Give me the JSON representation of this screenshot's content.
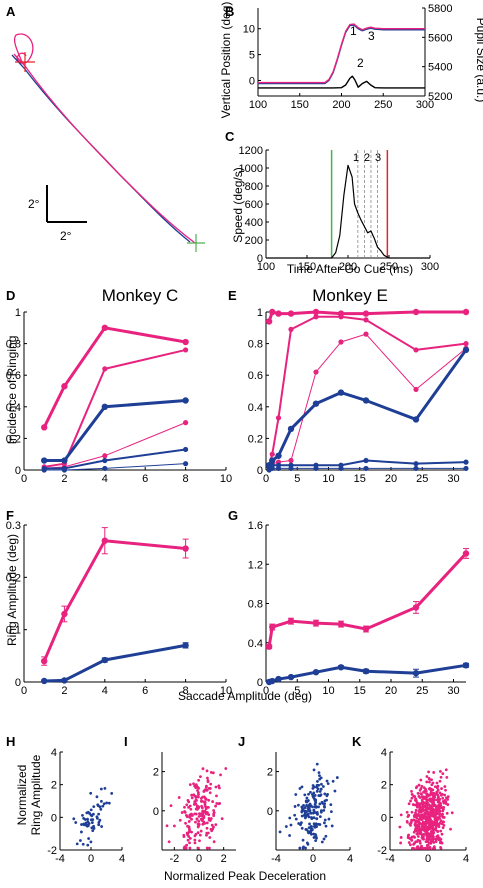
{
  "colors": {
    "magenta": "#e8237f",
    "blue": "#1f3f96",
    "green": "#4caf50",
    "red": "#e8242a",
    "black": "#000000"
  },
  "panels": {
    "A": {
      "label": "A",
      "scale_v": "2°",
      "scale_h": "2°"
    },
    "B": {
      "label": "B",
      "ylabel_left": "Vertical Position (deg)",
      "ylabel_right": "Pupil Size (a.u.)",
      "xticks": [
        "100",
        "150",
        "200",
        "250",
        "300"
      ],
      "yticks_left": [
        "0",
        "5",
        "10"
      ],
      "yticks_right": [
        "5200",
        "5400",
        "5600",
        "5800"
      ],
      "annotations": [
        "1",
        "2",
        "3"
      ]
    },
    "C": {
      "label": "C",
      "ylabel": "Speed (deg/s)",
      "xlabel": "Time After Go Cue (ms)",
      "xticks": [
        "100",
        "150",
        "200",
        "250",
        "300"
      ],
      "yticks": [
        "0",
        "200",
        "400",
        "600",
        "800",
        "1000",
        "1200"
      ],
      "annotations": [
        "1",
        "2",
        "3"
      ]
    },
    "D": {
      "label": "D",
      "title": "Monkey C",
      "ylabel": "Incidence of Ringing",
      "xticks": [
        "0",
        "2",
        "4",
        "6",
        "8",
        "10"
      ],
      "yticks": [
        "0",
        "0.2",
        "0.4",
        "0.6",
        "0.8",
        "1"
      ]
    },
    "E": {
      "label": "E",
      "title": "Monkey E",
      "xticks": [
        "0",
        "5",
        "10",
        "15",
        "20",
        "25",
        "30"
      ],
      "yticks": [
        "0",
        "0.2",
        "0.4",
        "0.6",
        "0.8",
        "1"
      ]
    },
    "F": {
      "label": "F",
      "ylabel": "Ring Amplitude (deg)",
      "xticks": [
        "0",
        "2",
        "4",
        "6",
        "8",
        "10"
      ],
      "yticks": [
        "0",
        "0.1",
        "0.2",
        "0.3"
      ]
    },
    "G": {
      "label": "G",
      "xticks": [
        "0",
        "5",
        "10",
        "15",
        "20",
        "25",
        "30"
      ],
      "yticks": [
        "0",
        "0.4",
        "0.8",
        "1.2",
        "1.6"
      ]
    },
    "shared_xlabel_FG": "Saccade Amplitude (deg)",
    "H": {
      "label": "H",
      "ylabel": "Normalized Ring Amplitude",
      "xticks": [
        "-4",
        "0",
        "4"
      ],
      "yticks": [
        "-2",
        "0",
        "2",
        "4"
      ]
    },
    "I": {
      "label": "I",
      "xticks": [
        "-2",
        "0",
        "2"
      ],
      "yticks": [
        "0",
        "2"
      ]
    },
    "J": {
      "label": "J",
      "xticks": [
        "-4",
        "0",
        "4"
      ],
      "yticks": [
        "0",
        "2"
      ]
    },
    "K": {
      "label": "K",
      "xticks": [
        "-4",
        "0",
        "4"
      ],
      "yticks": [
        "-2",
        "0",
        "2",
        "4"
      ]
    },
    "shared_xlabel_HK": "Normalized Peak Deceleration"
  },
  "chart_data": [
    {
      "panel": "B",
      "type": "line",
      "xlim": [
        100,
        300
      ],
      "ylim": [
        -3,
        14
      ],
      "y2lim": [
        5200,
        5800
      ],
      "series": [
        {
          "color": "blue",
          "x": [
            100,
            180,
            185,
            190,
            195,
            200,
            205,
            210,
            215,
            220,
            225,
            230,
            235,
            240,
            250,
            260,
            300
          ],
          "y": [
            -0.6,
            -0.6,
            0,
            1.5,
            4,
            6.8,
            9.3,
            10.6,
            10.7,
            10.0,
            9.6,
            9.9,
            10.1,
            9.9,
            9.8,
            9.8,
            9.8
          ]
        },
        {
          "color": "magenta",
          "x": [
            100,
            180,
            185,
            190,
            195,
            200,
            205,
            210,
            215,
            220,
            225,
            230,
            235,
            240,
            250,
            260,
            300
          ],
          "y": [
            -0.4,
            -0.4,
            0.2,
            1.7,
            4.2,
            7,
            9.5,
            10.8,
            10.9,
            10.2,
            9.8,
            10.1,
            10.3,
            10.1,
            10.0,
            10.0,
            10.0
          ]
        },
        {
          "color": "black",
          "axis": "right",
          "x": [
            100,
            180,
            190,
            200,
            205,
            210,
            213,
            216,
            220,
            225,
            230,
            235,
            240,
            250,
            300
          ],
          "y": [
            5255,
            5255,
            5255,
            5257,
            5275,
            5320,
            5335,
            5310,
            5260,
            5285,
            5300,
            5275,
            5257,
            5255,
            5255
          ]
        }
      ]
    },
    {
      "panel": "C",
      "type": "line",
      "xlim": [
        100,
        300
      ],
      "ylim": [
        0,
        1200
      ],
      "vlines": [
        {
          "x": 180,
          "color": "green"
        },
        {
          "x": 248,
          "color": "red"
        },
        {
          "x": 212,
          "style": "dashed"
        },
        {
          "x": 220,
          "style": "dashed"
        },
        {
          "x": 228,
          "style": "dashed"
        },
        {
          "x": 236,
          "style": "dashed"
        }
      ],
      "series": [
        {
          "color": "black",
          "x": [
            100,
            180,
            185,
            190,
            195,
            200,
            205,
            208,
            212,
            216,
            220,
            224,
            228,
            232,
            236,
            240,
            244,
            250,
            300
          ],
          "y": [
            0,
            0,
            60,
            250,
            700,
            1030,
            900,
            600,
            500,
            420,
            350,
            280,
            300,
            220,
            120,
            80,
            30,
            0,
            0
          ]
        }
      ]
    },
    {
      "panel": "D",
      "type": "line",
      "xlim": [
        0,
        10
      ],
      "ylim": [
        0,
        1
      ],
      "series": [
        {
          "color": "magenta",
          "width": 3,
          "x": [
            1,
            2,
            4,
            8
          ],
          "y": [
            0.27,
            0.53,
            0.9,
            0.81
          ]
        },
        {
          "color": "magenta",
          "width": 2,
          "x": [
            1,
            2,
            4,
            8
          ],
          "y": [
            0.02,
            0.04,
            0.64,
            0.76
          ]
        },
        {
          "color": "magenta",
          "width": 1,
          "x": [
            1,
            2,
            4,
            8
          ],
          "y": [
            0.01,
            0.02,
            0.09,
            0.3
          ]
        },
        {
          "color": "blue",
          "width": 3,
          "x": [
            1,
            2,
            4,
            8
          ],
          "y": [
            0.06,
            0.06,
            0.4,
            0.44
          ]
        },
        {
          "color": "blue",
          "width": 2,
          "x": [
            1,
            2,
            4,
            8
          ],
          "y": [
            0.01,
            0.01,
            0.06,
            0.13
          ]
        },
        {
          "color": "blue",
          "width": 1,
          "x": [
            1,
            2,
            4,
            8
          ],
          "y": [
            0,
            0,
            0.01,
            0.04
          ]
        }
      ]
    },
    {
      "panel": "E",
      "type": "line",
      "xlim": [
        0,
        32
      ],
      "ylim": [
        0,
        1
      ],
      "series": [
        {
          "color": "magenta",
          "width": 3,
          "x": [
            0.5,
            1,
            2,
            4,
            8,
            12,
            16,
            24,
            32
          ],
          "y": [
            0.94,
            1,
            0.99,
            0.99,
            1,
            0.99,
            0.99,
            1,
            1
          ]
        },
        {
          "color": "magenta",
          "width": 2,
          "x": [
            0.5,
            1,
            2,
            4,
            8,
            12,
            16,
            24,
            32
          ],
          "y": [
            0.03,
            0.1,
            0.33,
            0.89,
            0.97,
            0.97,
            0.95,
            0.76,
            0.8
          ]
        },
        {
          "color": "magenta",
          "width": 1,
          "x": [
            0.5,
            1,
            2,
            4,
            8,
            12,
            16,
            24,
            32
          ],
          "y": [
            0.02,
            0.04,
            0.05,
            0.06,
            0.62,
            0.81,
            0.86,
            0.51,
            0.77
          ]
        },
        {
          "color": "blue",
          "width": 3,
          "x": [
            0.5,
            1,
            2,
            4,
            8,
            12,
            16,
            24,
            32
          ],
          "y": [
            0.03,
            0.06,
            0.09,
            0.26,
            0.42,
            0.49,
            0.44,
            0.32,
            0.76
          ]
        },
        {
          "color": "blue",
          "width": 2,
          "x": [
            0.5,
            1,
            2,
            4,
            8,
            12,
            16,
            24,
            32
          ],
          "y": [
            0.02,
            0.03,
            0.03,
            0.03,
            0.03,
            0.03,
            0.06,
            0.04,
            0.05
          ]
        },
        {
          "color": "blue",
          "width": 1,
          "x": [
            0.5,
            1,
            2,
            4,
            8,
            12,
            16,
            24,
            32
          ],
          "y": [
            0,
            0.01,
            0.01,
            0.01,
            0.01,
            0.01,
            0.01,
            0.01,
            0.01
          ]
        }
      ]
    },
    {
      "panel": "F",
      "type": "line",
      "xlim": [
        0,
        10
      ],
      "ylim": [
        0,
        0.3
      ],
      "series": [
        {
          "color": "magenta",
          "width": 3,
          "x": [
            1,
            2,
            4,
            8
          ],
          "y": [
            0.04,
            0.13,
            0.27,
            0.255
          ],
          "err": [
            0.008,
            0.015,
            0.025,
            0.018
          ]
        },
        {
          "color": "blue",
          "width": 3,
          "x": [
            1,
            2,
            4,
            8
          ],
          "y": [
            0.002,
            0.003,
            0.042,
            0.07
          ],
          "err": [
            0.002,
            0.002,
            0.004,
            0.005
          ]
        }
      ]
    },
    {
      "panel": "G",
      "type": "line",
      "xlim": [
        0,
        32
      ],
      "ylim": [
        0,
        1.6
      ],
      "series": [
        {
          "color": "magenta",
          "width": 3,
          "x": [
            0.5,
            1,
            4,
            8,
            12,
            16,
            24,
            32
          ],
          "y": [
            0.36,
            0.56,
            0.62,
            0.6,
            0.59,
            0.54,
            0.76,
            1.31
          ],
          "err": [
            0.02,
            0.03,
            0.03,
            0.03,
            0.03,
            0.03,
            0.06,
            0.05
          ]
        },
        {
          "color": "blue",
          "width": 3,
          "x": [
            0.5,
            1,
            2,
            4,
            8,
            12,
            16,
            24,
            32
          ],
          "y": [
            0,
            0.01,
            0.03,
            0.05,
            0.1,
            0.15,
            0.11,
            0.09,
            0.17
          ],
          "err": [
            0.005,
            0.005,
            0.01,
            0.01,
            0.01,
            0.015,
            0.02,
            0.04,
            0.02
          ]
        }
      ]
    },
    {
      "panel": "H",
      "type": "scatter",
      "color": "blue",
      "xlim": [
        -4,
        4
      ],
      "ylim": [
        -2,
        4
      ],
      "n": 60,
      "xspread": 1.0,
      "yspread": 0.8,
      "slope": 0.35
    },
    {
      "panel": "I",
      "type": "scatter",
      "color": "magenta",
      "xlim": [
        -3,
        3
      ],
      "ylim": [
        -2,
        3
      ],
      "n": 200,
      "xspread": 0.9,
      "yspread": 0.9,
      "slope": 0.35
    },
    {
      "panel": "J",
      "type": "scatter",
      "color": "blue",
      "xlim": [
        -4,
        4
      ],
      "ylim": [
        -2,
        3
      ],
      "n": 180,
      "xspread": 1.0,
      "yspread": 0.9,
      "slope": 0.3
    },
    {
      "panel": "K",
      "type": "scatter",
      "color": "magenta",
      "xlim": [
        -4,
        4
      ],
      "ylim": [
        -2,
        4
      ],
      "n": 600,
      "xspread": 1.0,
      "yspread": 1.0,
      "slope": 0.3
    }
  ]
}
